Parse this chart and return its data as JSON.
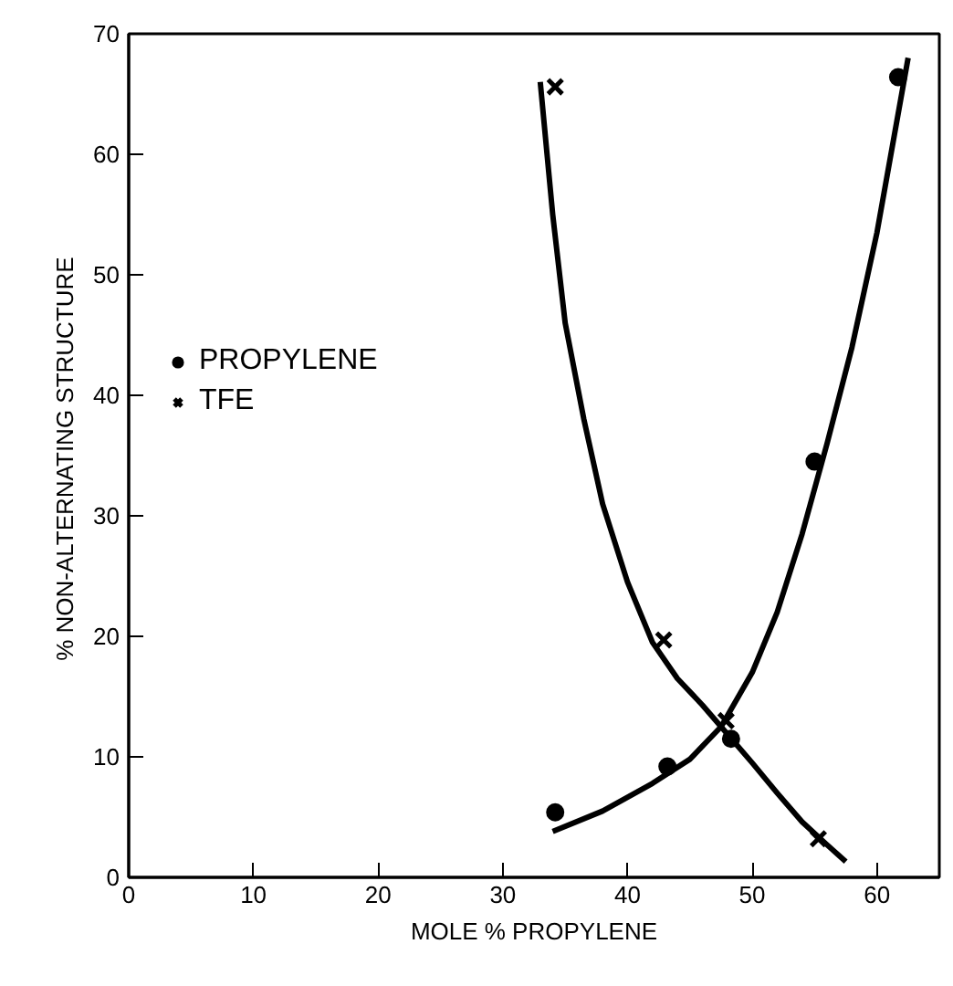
{
  "chart_data": {
    "type": "scatter",
    "xlabel": "MOLE % PROPYLENE",
    "ylabel": "% NON-ALTERNATING  STRUCTURE",
    "xlim": [
      0,
      65
    ],
    "ylim": [
      0,
      70
    ],
    "xticks": [
      0,
      10,
      20,
      30,
      40,
      50,
      60
    ],
    "yticks": [
      0,
      10,
      20,
      30,
      40,
      50,
      60,
      70
    ],
    "grid": false,
    "legend": "left",
    "series": [
      {
        "name": "PROPYLENE",
        "color": "#000000",
        "marker": "circle",
        "x": [
          34.2,
          43.2,
          48.3,
          55.0,
          61.7
        ],
        "values": [
          5.4,
          9.2,
          11.5,
          34.5,
          66.4
        ]
      },
      {
        "name": "TFE",
        "color": "#000000",
        "marker": "cross",
        "x": [
          34.2,
          42.9,
          47.9,
          55.3
        ],
        "values": [
          65.6,
          19.7,
          13.0,
          3.2
        ]
      },
      {
        "type": "line",
        "color": "#000000",
        "x": [
          34,
          38,
          42,
          45,
          47.5,
          50,
          52,
          54,
          56,
          58,
          60,
          62.5
        ],
        "values": [
          3.8,
          5.5,
          7.8,
          9.8,
          12.5,
          17,
          22,
          28.5,
          36,
          44,
          53.5,
          68
        ]
      },
      {
        "type": "line",
        "color": "#000000",
        "x": [
          33,
          34,
          35,
          36.5,
          38,
          40,
          42,
          44,
          46,
          47.5,
          50,
          52,
          54,
          56,
          57.5
        ],
        "values": [
          66,
          55,
          46,
          38,
          31,
          24.5,
          19.5,
          16.5,
          14.3,
          12.5,
          9.5,
          7,
          4.6,
          2.7,
          1.3
        ]
      }
    ]
  }
}
